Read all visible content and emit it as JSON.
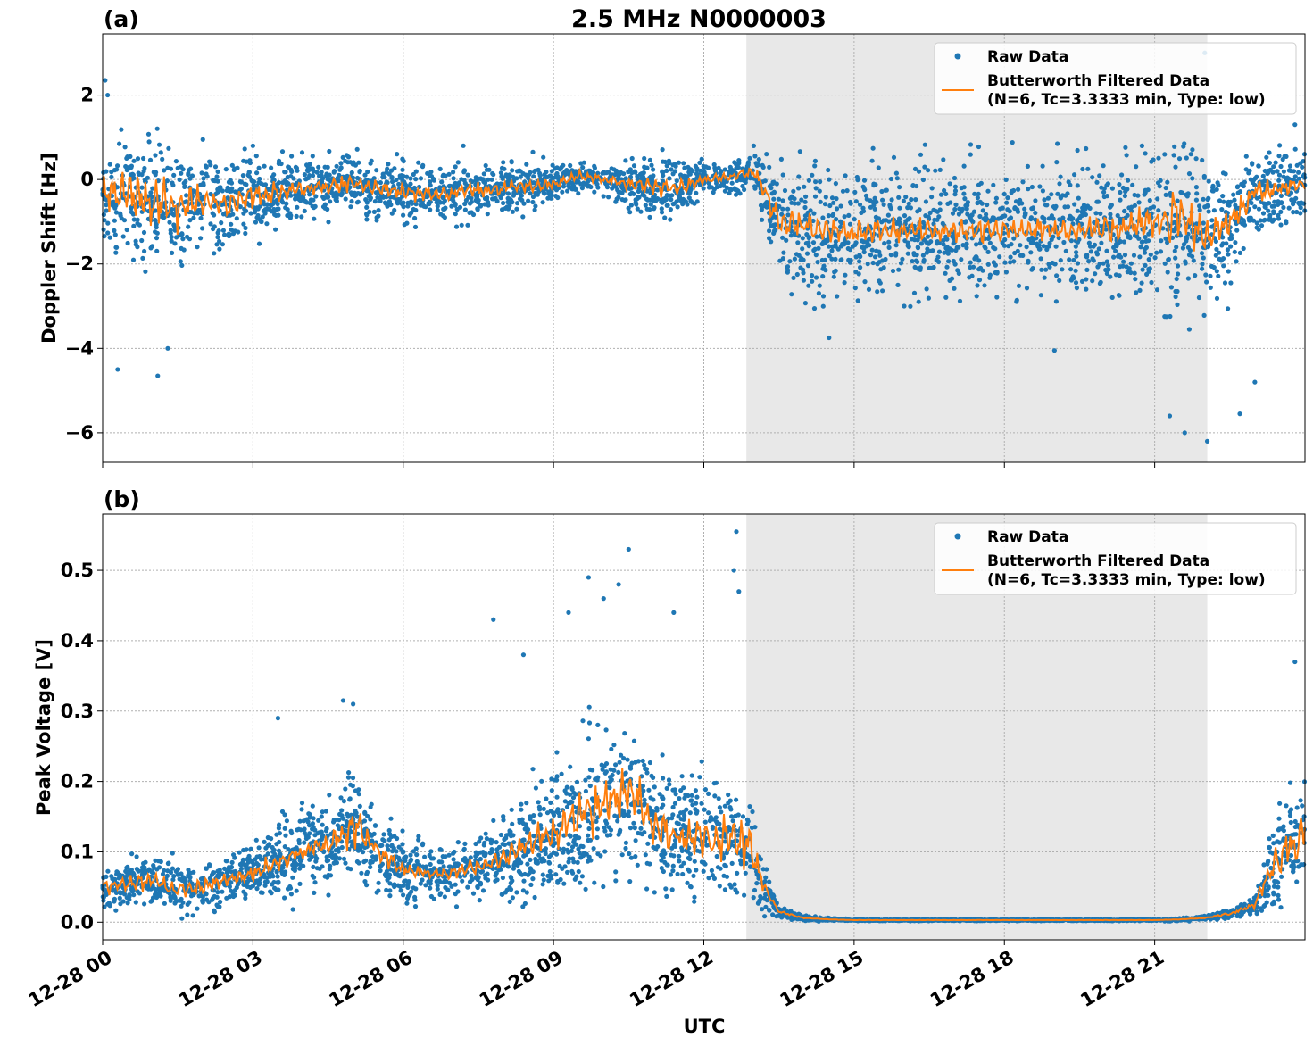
{
  "figure": {
    "title": "2.5 MHz N0000003",
    "xlabel": "UTC"
  },
  "colors": {
    "raw": "#1f77b4",
    "filtered": "#ff7f0e",
    "shade": "#e8e8e8",
    "grid": "#b0b0b0"
  },
  "chart_data": [
    {
      "type": "scatter",
      "panel_label": "(a)",
      "ylabel": "Doppler Shift [Hz]",
      "xlim_hours": [
        0,
        24
      ],
      "ylim": [
        -6.7,
        3.45
      ],
      "yticks": [
        -6,
        -4,
        -2,
        0,
        2
      ],
      "ytick_labels": [
        "−6",
        "−4",
        "−2",
        "0",
        "2"
      ],
      "xtick_hours": [
        0,
        3,
        6,
        9,
        12,
        15,
        18,
        21
      ],
      "xtick_labels": [
        "12-28 00",
        "12-28 03",
        "12-28 06",
        "12-28 09",
        "12-28 12",
        "12-28 15",
        "12-28 18",
        "12-28 21"
      ],
      "shaded_span_hours": [
        12.85,
        22.05
      ],
      "legend": {
        "placement": "upper right",
        "raw_label": "Raw Data",
        "filtered_label_line1": "Butterworth Filtered Data",
        "filtered_label_line2": "(N=6, Tc=3.3333 min, Type: low)"
      },
      "series": [
        {
          "name": "Raw Data",
          "style": "points",
          "x_hours": [
            0,
            0.5,
            1,
            1.5,
            2,
            2.5,
            3,
            3.5,
            4,
            4.5,
            5,
            5.5,
            6,
            6.5,
            7,
            7.5,
            8,
            8.5,
            9,
            9.5,
            10,
            10.5,
            11,
            11.5,
            12,
            12.5,
            13,
            13.5,
            14,
            14.5,
            15,
            15.5,
            16,
            16.5,
            17,
            17.5,
            18,
            18.5,
            19,
            19.5,
            20,
            20.5,
            21,
            21.5,
            22,
            22.5,
            23,
            23.5,
            24
          ],
          "center": [
            -0.3,
            -0.4,
            -0.5,
            -0.7,
            -0.5,
            -0.6,
            -0.4,
            -0.3,
            -0.2,
            -0.15,
            -0.1,
            -0.2,
            -0.3,
            -0.35,
            -0.3,
            -0.25,
            -0.2,
            -0.15,
            -0.1,
            0.1,
            0.0,
            -0.1,
            -0.2,
            -0.2,
            0.0,
            0.05,
            0.2,
            -1.0,
            -1.1,
            -1.2,
            -1.25,
            -1.2,
            -1.2,
            -1.2,
            -1.25,
            -1.2,
            -1.2,
            -1.15,
            -1.2,
            -1.2,
            -1.2,
            -1.1,
            -1.0,
            -0.9,
            -1.4,
            -1.0,
            -0.3,
            -0.2,
            -0.1
          ],
          "spread": [
            0.9,
            1.2,
            1.3,
            1.3,
            1.0,
            0.9,
            0.8,
            0.7,
            0.6,
            0.6,
            0.6,
            0.6,
            0.6,
            0.6,
            0.6,
            0.6,
            0.5,
            0.5,
            0.4,
            0.3,
            0.3,
            0.5,
            0.7,
            0.6,
            0.3,
            0.3,
            0.4,
            1.3,
            1.4,
            1.3,
            1.3,
            1.3,
            1.3,
            1.3,
            1.3,
            1.3,
            1.3,
            1.3,
            1.3,
            1.3,
            1.3,
            1.4,
            1.5,
            2.0,
            1.5,
            1.2,
            0.9,
            0.8,
            0.8
          ],
          "outliers": [
            [
              0.05,
              2.35
            ],
            [
              0.1,
              2.0
            ],
            [
              0.3,
              -4.5
            ],
            [
              1.1,
              -4.65
            ],
            [
              1.3,
              -4.0
            ],
            [
              2.0,
              0.95
            ],
            [
              3.0,
              0.8
            ],
            [
              7.2,
              0.8
            ],
            [
              11.5,
              0.4
            ],
            [
              14.5,
              -3.75
            ],
            [
              16.0,
              -3.0
            ],
            [
              19.0,
              -4.05
            ],
            [
              21.3,
              -5.6
            ],
            [
              21.6,
              -6.0
            ],
            [
              22.0,
              3.0
            ],
            [
              22.05,
              -6.2
            ],
            [
              22.7,
              -5.55
            ],
            [
              23.0,
              -4.8
            ],
            [
              23.8,
              1.3
            ]
          ]
        },
        {
          "name": "Butterworth Filtered Data",
          "style": "line",
          "x_hours": [
            0,
            0.5,
            1,
            1.5,
            2,
            2.5,
            3,
            3.5,
            4,
            4.5,
            5,
            5.5,
            6,
            6.5,
            7,
            7.5,
            8,
            8.5,
            9,
            9.5,
            10,
            10.5,
            11,
            11.5,
            12,
            12.5,
            13,
            13.5,
            14,
            14.5,
            15,
            15.5,
            16,
            16.5,
            17,
            17.5,
            18,
            18.5,
            19,
            19.5,
            20,
            20.5,
            21,
            21.5,
            22,
            22.5,
            23,
            23.5,
            24
          ],
          "center": [
            -0.3,
            -0.4,
            -0.5,
            -0.7,
            -0.5,
            -0.6,
            -0.4,
            -0.3,
            -0.2,
            -0.15,
            -0.1,
            -0.2,
            -0.3,
            -0.35,
            -0.3,
            -0.25,
            -0.2,
            -0.15,
            -0.1,
            0.1,
            0.0,
            -0.1,
            -0.2,
            -0.2,
            0.0,
            0.05,
            0.2,
            -1.0,
            -1.1,
            -1.2,
            -1.25,
            -1.2,
            -1.2,
            -1.2,
            -1.25,
            -1.2,
            -1.2,
            -1.15,
            -1.2,
            -1.2,
            -1.2,
            -1.1,
            -1.0,
            -0.9,
            -1.4,
            -1.0,
            -0.3,
            -0.2,
            -0.1
          ],
          "wiggle": [
            0.35,
            0.55,
            0.6,
            0.55,
            0.4,
            0.35,
            0.3,
            0.25,
            0.2,
            0.2,
            0.2,
            0.2,
            0.2,
            0.2,
            0.2,
            0.2,
            0.15,
            0.15,
            0.12,
            0.1,
            0.1,
            0.15,
            0.2,
            0.2,
            0.1,
            0.1,
            0.15,
            0.4,
            0.35,
            0.3,
            0.3,
            0.3,
            0.3,
            0.3,
            0.3,
            0.3,
            0.3,
            0.3,
            0.3,
            0.3,
            0.3,
            0.35,
            0.45,
            0.8,
            0.5,
            0.35,
            0.25,
            0.2,
            0.2
          ]
        }
      ]
    },
    {
      "type": "scatter",
      "panel_label": "(b)",
      "ylabel": "Peak Voltage [V]",
      "xlim_hours": [
        0,
        24
      ],
      "ylim": [
        -0.025,
        0.58
      ],
      "yticks": [
        0.0,
        0.1,
        0.2,
        0.3,
        0.4,
        0.5
      ],
      "ytick_labels": [
        "0.0",
        "0.1",
        "0.2",
        "0.3",
        "0.4",
        "0.5"
      ],
      "xtick_hours": [
        0,
        3,
        6,
        9,
        12,
        15,
        18,
        21
      ],
      "xtick_labels": [
        "12-28 00",
        "12-28 03",
        "12-28 06",
        "12-28 09",
        "12-28 12",
        "12-28 15",
        "12-28 18",
        "12-28 21"
      ],
      "shaded_span_hours": [
        12.85,
        22.05
      ],
      "legend": {
        "placement": "upper right",
        "raw_label": "Raw Data",
        "filtered_label_line1": "Butterworth Filtered Data",
        "filtered_label_line2": "(N=6, Tc=3.3333 min, Type: low)"
      },
      "series": [
        {
          "name": "Raw Data",
          "style": "points",
          "x_hours": [
            0,
            0.5,
            1,
            1.5,
            2,
            2.5,
            3,
            3.5,
            4,
            4.5,
            5,
            5.5,
            6,
            6.5,
            7,
            7.5,
            8,
            8.5,
            9,
            9.5,
            10,
            10.5,
            11,
            11.5,
            12,
            12.5,
            12.9,
            13.2,
            13.5,
            14,
            14.5,
            15,
            16,
            17,
            18,
            19,
            20,
            21,
            21.5,
            22,
            22.5,
            23,
            23.3,
            23.6,
            24
          ],
          "center": [
            0.05,
            0.055,
            0.06,
            0.045,
            0.05,
            0.06,
            0.07,
            0.085,
            0.1,
            0.11,
            0.14,
            0.1,
            0.075,
            0.07,
            0.07,
            0.08,
            0.09,
            0.11,
            0.13,
            0.15,
            0.17,
            0.19,
            0.14,
            0.12,
            0.12,
            0.12,
            0.11,
            0.05,
            0.015,
            0.006,
            0.004,
            0.003,
            0.003,
            0.003,
            0.003,
            0.003,
            0.003,
            0.003,
            0.004,
            0.006,
            0.012,
            0.025,
            0.07,
            0.1,
            0.13
          ],
          "spread": [
            0.025,
            0.03,
            0.035,
            0.03,
            0.03,
            0.03,
            0.035,
            0.05,
            0.05,
            0.05,
            0.07,
            0.05,
            0.04,
            0.035,
            0.035,
            0.04,
            0.05,
            0.06,
            0.08,
            0.09,
            0.1,
            0.1,
            0.08,
            0.07,
            0.07,
            0.07,
            0.07,
            0.03,
            0.008,
            0.003,
            0.002,
            0.001,
            0.001,
            0.001,
            0.001,
            0.001,
            0.001,
            0.001,
            0.002,
            0.003,
            0.006,
            0.015,
            0.05,
            0.07,
            0.08
          ],
          "outliers": [
            [
              3.5,
              0.29
            ],
            [
              4.8,
              0.315
            ],
            [
              5.0,
              0.31
            ],
            [
              7.8,
              0.43
            ],
            [
              8.4,
              0.38
            ],
            [
              9.3,
              0.44
            ],
            [
              9.7,
              0.49
            ],
            [
              10.0,
              0.46
            ],
            [
              10.5,
              0.53
            ],
            [
              10.3,
              0.48
            ],
            [
              11.4,
              0.44
            ],
            [
              12.6,
              0.5
            ],
            [
              12.65,
              0.555
            ],
            [
              12.7,
              0.47
            ],
            [
              23.8,
              0.37
            ]
          ]
        },
        {
          "name": "Butterworth Filtered Data",
          "style": "line",
          "x_hours": [
            0,
            0.5,
            1,
            1.5,
            2,
            2.5,
            3,
            3.5,
            4,
            4.5,
            5,
            5.5,
            6,
            6.5,
            7,
            7.5,
            8,
            8.5,
            9,
            9.5,
            10,
            10.5,
            11,
            11.5,
            12,
            12.5,
            12.9,
            13.2,
            13.5,
            14,
            14.5,
            15,
            16,
            17,
            18,
            19,
            20,
            21,
            21.5,
            22,
            22.5,
            23,
            23.3,
            23.6,
            24
          ],
          "center": [
            0.05,
            0.055,
            0.06,
            0.045,
            0.05,
            0.06,
            0.07,
            0.085,
            0.1,
            0.11,
            0.14,
            0.1,
            0.075,
            0.07,
            0.07,
            0.08,
            0.09,
            0.11,
            0.13,
            0.15,
            0.17,
            0.19,
            0.14,
            0.12,
            0.12,
            0.12,
            0.11,
            0.05,
            0.015,
            0.006,
            0.004,
            0.003,
            0.003,
            0.003,
            0.003,
            0.003,
            0.003,
            0.003,
            0.004,
            0.006,
            0.012,
            0.025,
            0.07,
            0.1,
            0.13
          ],
          "wiggle": [
            0.01,
            0.012,
            0.015,
            0.01,
            0.01,
            0.01,
            0.012,
            0.015,
            0.015,
            0.015,
            0.03,
            0.015,
            0.01,
            0.008,
            0.008,
            0.012,
            0.015,
            0.02,
            0.03,
            0.03,
            0.04,
            0.04,
            0.03,
            0.03,
            0.03,
            0.04,
            0.04,
            0.01,
            0.002,
            0.0005,
            0.0003,
            0.0002,
            0.0002,
            0.0002,
            0.0002,
            0.0002,
            0.0002,
            0.0002,
            0.0003,
            0.0005,
            0.002,
            0.005,
            0.02,
            0.03,
            0.04
          ]
        }
      ]
    }
  ]
}
